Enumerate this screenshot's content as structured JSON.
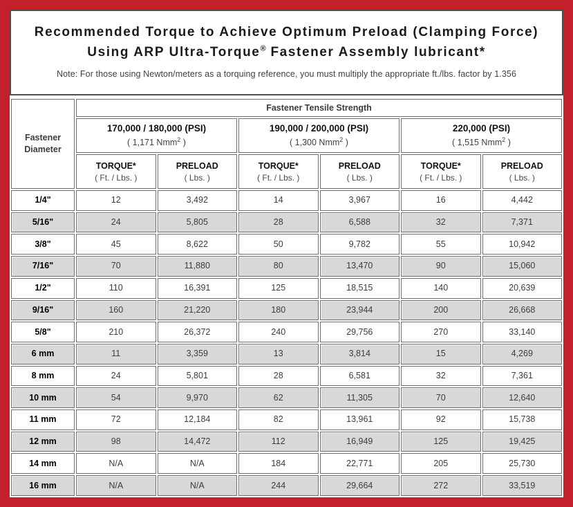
{
  "colors": {
    "frame_red": "#c2202a",
    "cell_gray": "#d8d8d8",
    "border_gray": "#6e6e6e"
  },
  "title": {
    "line1": "Recommended Torque to Achieve Optimum Preload (Clamping Force)",
    "line2_pre": "Using ARP Ultra-Torque",
    "line2_sup": "®",
    "line2_post": " Fastener Assembly lubricant*",
    "note": "Note: For those using Newton/meters as a torquing reference, you must multiply the appropriate ft./lbs. factor by 1.356"
  },
  "table": {
    "banner": "Fastener Tensile Strength",
    "diameter_header_line1": "Fastener",
    "diameter_header_line2": "Diameter",
    "groups": [
      {
        "psi": "170,000 / 180,000 (PSI)",
        "nmm_pre": "( 1,171 Nmm",
        "nmm_sup": "2",
        "nmm_post": " )"
      },
      {
        "psi": "190,000 / 200,000 (PSI)",
        "nmm_pre": "( 1,300 Nmm",
        "nmm_sup": "2",
        "nmm_post": " )"
      },
      {
        "psi": "220,000 (PSI)",
        "nmm_pre": "( 1,515 Nmm",
        "nmm_sup": "2",
        "nmm_post": " )"
      }
    ],
    "col_headers": {
      "torque_label": "TORQUE*",
      "torque_unit": "( Ft. / Lbs. )",
      "preload_label": "PRELOAD",
      "preload_unit": "( Lbs. )"
    },
    "rows": [
      {
        "diameter": "1/4\"",
        "values": [
          "12",
          "3,492",
          "14",
          "3,967",
          "16",
          "4,442"
        ]
      },
      {
        "diameter": "5/16\"",
        "values": [
          "24",
          "5,805",
          "28",
          "6,588",
          "32",
          "7,371"
        ]
      },
      {
        "diameter": "3/8\"",
        "values": [
          "45",
          "8,622",
          "50",
          "9,782",
          "55",
          "10,942"
        ]
      },
      {
        "diameter": "7/16\"",
        "values": [
          "70",
          "11,880",
          "80",
          "13,470",
          "90",
          "15,060"
        ]
      },
      {
        "diameter": "1/2\"",
        "values": [
          "110",
          "16,391",
          "125",
          "18,515",
          "140",
          "20,639"
        ]
      },
      {
        "diameter": "9/16\"",
        "values": [
          "160",
          "21,220",
          "180",
          "23,944",
          "200",
          "26,668"
        ]
      },
      {
        "diameter": "5/8\"",
        "values": [
          "210",
          "26,372",
          "240",
          "29,756",
          "270",
          "33,140"
        ]
      },
      {
        "diameter": "6 mm",
        "values": [
          "11",
          "3,359",
          "13",
          "3,814",
          "15",
          "4,269"
        ]
      },
      {
        "diameter": "8 mm",
        "values": [
          "24",
          "5,801",
          "28",
          "6,581",
          "32",
          "7,361"
        ]
      },
      {
        "diameter": "10 mm",
        "values": [
          "54",
          "9,970",
          "62",
          "11,305",
          "70",
          "12,640"
        ]
      },
      {
        "diameter": "11 mm",
        "values": [
          "72",
          "12,184",
          "82",
          "13,961",
          "92",
          "15,738"
        ]
      },
      {
        "diameter": "12 mm",
        "values": [
          "98",
          "14,472",
          "112",
          "16,949",
          "125",
          "19,425"
        ]
      },
      {
        "diameter": "14 mm",
        "values": [
          "N/A",
          "N/A",
          "184",
          "22,771",
          "205",
          "25,730"
        ]
      },
      {
        "diameter": "16 mm",
        "values": [
          "N/A",
          "N/A",
          "244",
          "29,664",
          "272",
          "33,519"
        ]
      }
    ]
  }
}
